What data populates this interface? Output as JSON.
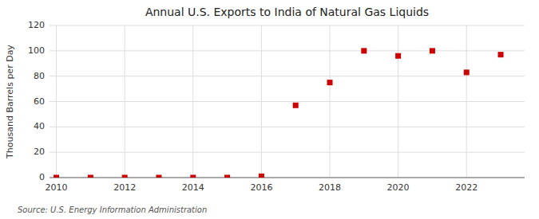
{
  "chart_data": {
    "type": "scatter",
    "title": "Annual U.S. Exports to India of Natural Gas Liquids",
    "ylabel": "Thousand Barrels per Day",
    "annotations": [
      "Source: U.S. Energy Information Administration"
    ],
    "x": [
      2010,
      2011,
      2012,
      2013,
      2014,
      2015,
      2016,
      2017,
      2018,
      2019,
      2020,
      2021,
      2022,
      2023
    ],
    "values": [
      0,
      0,
      0,
      0,
      0,
      0,
      1,
      57,
      75,
      100,
      96,
      100,
      83,
      97
    ],
    "color": "#cc0000",
    "marker": "square",
    "xlim": [
      2009.8,
      2023.7
    ],
    "ylim": [
      0,
      120
    ],
    "xticks": [
      2010,
      2012,
      2014,
      2016,
      2018,
      2020,
      2022
    ],
    "yticks": [
      0,
      20,
      40,
      60,
      80,
      100,
      120
    ],
    "grid": true
  }
}
